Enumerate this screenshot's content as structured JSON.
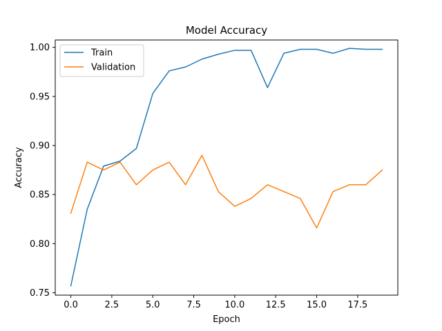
{
  "chart_data": {
    "type": "line",
    "title": "Model Accuracy",
    "xlabel": "Epoch",
    "ylabel": "Accuracy",
    "x": [
      0,
      1,
      2,
      3,
      4,
      5,
      6,
      7,
      8,
      9,
      10,
      11,
      12,
      13,
      14,
      15,
      16,
      17,
      18,
      19
    ],
    "xlim": [
      -0.95,
      19.95
    ],
    "ylim": [
      0.7475,
      1.0075
    ],
    "xticks": [
      0.0,
      2.5,
      5.0,
      7.5,
      10.0,
      12.5,
      15.0,
      17.5
    ],
    "xtick_labels": [
      "0.0",
      "2.5",
      "5.0",
      "7.5",
      "10.0",
      "12.5",
      "15.0",
      "17.5"
    ],
    "yticks": [
      0.75,
      0.8,
      0.85,
      0.9,
      0.95,
      1.0
    ],
    "ytick_labels": [
      "0.75",
      "0.80",
      "0.85",
      "0.90",
      "0.95",
      "1.00"
    ],
    "grid": false,
    "legend_position": "top-left",
    "series": [
      {
        "name": "Train",
        "color": "#1f77b4",
        "values": [
          0.757,
          0.835,
          0.879,
          0.884,
          0.897,
          0.953,
          0.976,
          0.98,
          0.988,
          0.993,
          0.997,
          0.997,
          0.959,
          0.994,
          0.998,
          0.998,
          0.994,
          0.999,
          0.998,
          0.998
        ]
      },
      {
        "name": "Validation",
        "color": "#ff7f0e",
        "values": [
          0.831,
          0.883,
          0.875,
          0.883,
          0.86,
          0.875,
          0.883,
          0.86,
          0.89,
          0.853,
          0.838,
          0.846,
          0.86,
          0.853,
          0.846,
          0.816,
          0.853,
          0.86,
          0.86,
          0.875
        ]
      }
    ]
  }
}
